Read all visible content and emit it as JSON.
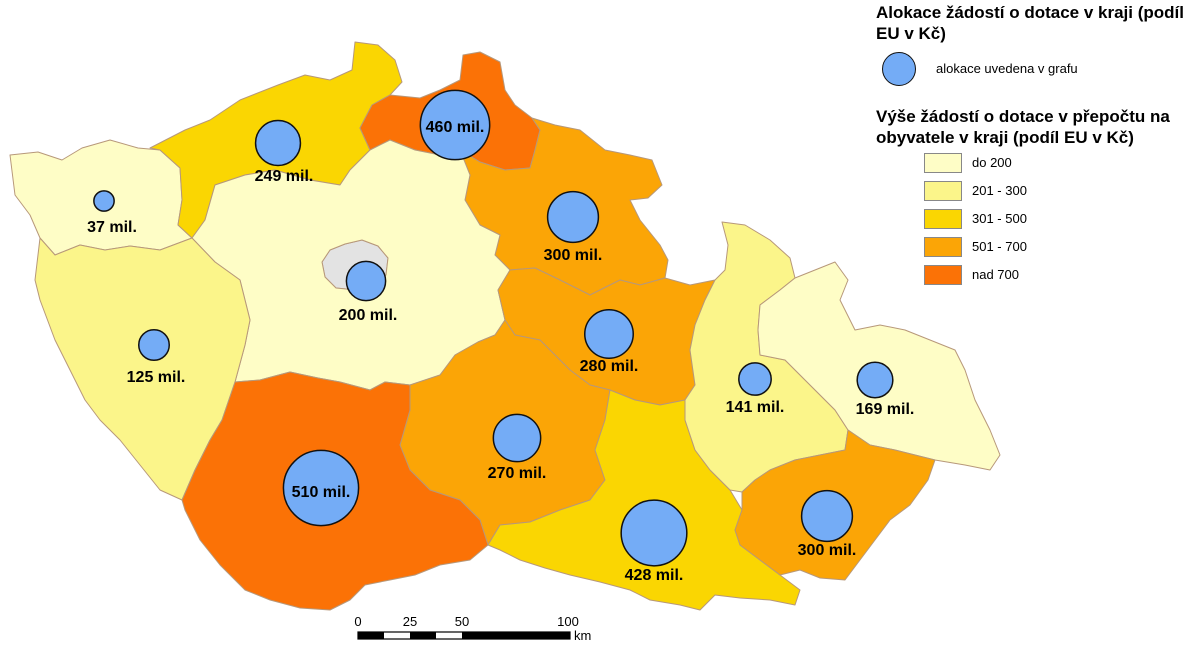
{
  "colors": {
    "do_200": "#fefdc6",
    "c201_300": "#fbf58a",
    "c301_500": "#fad602",
    "c501_700": "#fba506",
    "nad_700": "#fb7206",
    "praha": "#e3e3e3",
    "bubble": "#74acf6"
  },
  "legend": {
    "title_alloc": "Alokace žádostí o dotace v kraji (podíl EU v Kč)",
    "alloc_label": "alokace uvedena v grafu",
    "title_classes": "Výše žádostí o dotace v přepočtu na obyvatele v kraji (podíl EU v Kč)",
    "classes": [
      {
        "label": "do 200",
        "color": "#fefdc6"
      },
      {
        "label": "201 - 300",
        "color": "#fbf58a"
      },
      {
        "label": "301 - 500",
        "color": "#fad602"
      },
      {
        "label": "501 - 700",
        "color": "#fba506"
      },
      {
        "label": "nad 700",
        "color": "#fb7206"
      }
    ]
  },
  "regions": [
    {
      "label": "37 mil.",
      "value_mil": 37,
      "class": "do 200"
    },
    {
      "label": "249 mil.",
      "value_mil": 249,
      "class": "301 - 500"
    },
    {
      "label": "460 mil.",
      "value_mil": 460,
      "class": "nad 700"
    },
    {
      "label": "300 mil.",
      "value_mil": 300,
      "class": "501 - 700"
    },
    {
      "label": "200 mil.",
      "value_mil": 200,
      "class": "do 200"
    },
    {
      "label": "125 mil.",
      "value_mil": 125,
      "class": "201 - 300"
    },
    {
      "label": "280 mil.",
      "value_mil": 280,
      "class": "501 - 700"
    },
    {
      "label": "270 mil.",
      "value_mil": 270,
      "class": "501 - 700"
    },
    {
      "label": "510 mil.",
      "value_mil": 510,
      "class": "nad 700"
    },
    {
      "label": "428 mil.",
      "value_mil": 428,
      "class": "301 - 500"
    },
    {
      "label": "141 mil.",
      "value_mil": 141,
      "class": "201 - 300"
    },
    {
      "label": "169 mil.",
      "value_mil": 169,
      "class": "do 200"
    },
    {
      "label": "300 mil.",
      "value_mil": 300,
      "class": "501 - 700"
    }
  ],
  "scale": {
    "ticks": [
      "0",
      "25",
      "50",
      "100"
    ],
    "unit": "km"
  }
}
